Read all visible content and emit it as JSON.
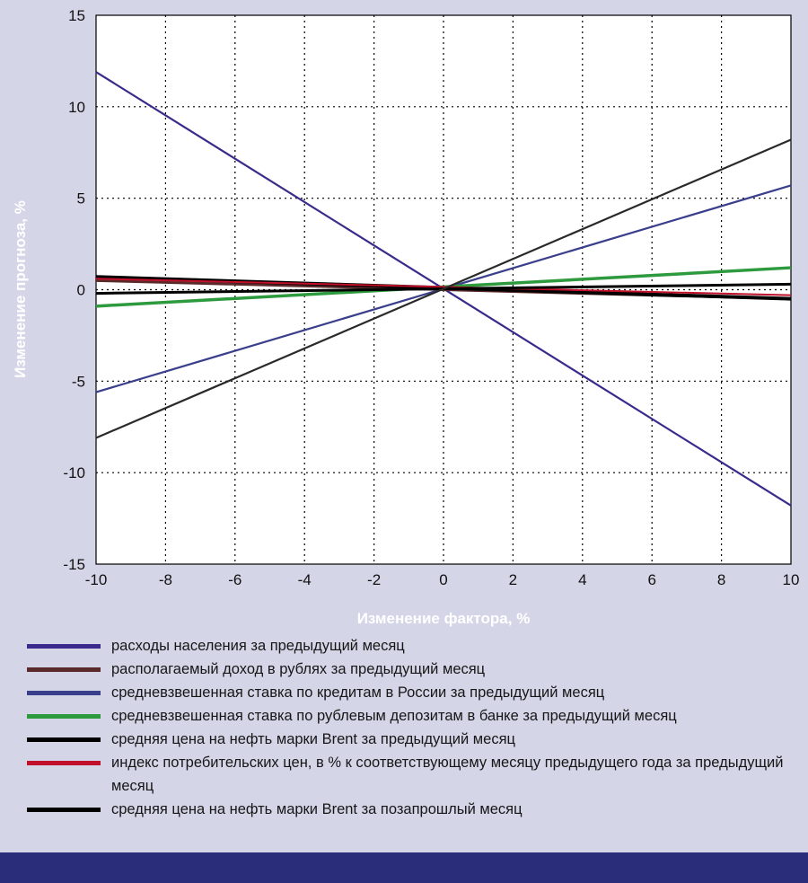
{
  "chart_data": {
    "type": "line",
    "ylabel": "Изменение прогноза, %",
    "xlabel": "Изменение фактора, %",
    "xlim": [
      -10,
      10
    ],
    "ylim": [
      -15,
      15
    ],
    "x_ticks": [
      "-10",
      "-8",
      "-6",
      "-4",
      "-2",
      "0",
      "2",
      "4",
      "6",
      "8",
      "10"
    ],
    "y_ticks": [
      "15",
      "10",
      "5",
      "0",
      "-5",
      "-10",
      "-15"
    ],
    "grid": true,
    "series": [
      {
        "name": "расходы населения за предыдущий месяц",
        "color": "#3a2a8c",
        "x": [
          -10,
          10
        ],
        "y": [
          11.9,
          -11.8
        ]
      },
      {
        "name": "располагаемый доход в рублях за предыдущий месяц",
        "color": "#5a2a2a",
        "x": [
          -10,
          10
        ],
        "y": [
          0.5,
          -0.5
        ]
      },
      {
        "name": "средневзвешенная ставка по кредитам в России за предыдущий месяц",
        "color": "#3a3f8c",
        "x": [
          -10,
          10
        ],
        "y": [
          -5.6,
          5.7
        ]
      },
      {
        "name": "средневзвешенная ставка по рублевым депозитам в банке за предыдущий месяц",
        "color": "#2e9a3e",
        "x": [
          -10,
          10
        ],
        "y": [
          -0.9,
          1.2
        ]
      },
      {
        "name": "средняя цена на нефть марки Brent за предыдущий месяц",
        "color": "#000000",
        "x": [
          -10,
          10
        ],
        "y": [
          0.7,
          -0.5
        ]
      },
      {
        "name": "индекс потребительских цен, в % к соответствующему месяцу предыдущего года за предыдущий месяц",
        "color": "#c0102a",
        "x": [
          -10,
          10
        ],
        "y": [
          0.6,
          -0.3
        ]
      },
      {
        "name": "средняя цена на нефть марки Brent за позапрошлый месяц",
        "color": "#000000",
        "x": [
          -10,
          10
        ],
        "y": [
          -0.2,
          0.3
        ]
      },
      {
        "name": "",
        "color": "#2a2a2a",
        "x": [
          -10,
          10
        ],
        "y": [
          -8.1,
          8.2
        ]
      }
    ]
  },
  "legend": [
    {
      "label": "расходы населения за предыдущий месяц",
      "color": "#3a2a8c"
    },
    {
      "label": "располагаемый доход в рублях за предыдущий месяц",
      "color": "#5a2a2a"
    },
    {
      "label": "средневзвешенная ставка по кредитам в России за предыдущий месяц",
      "color": "#3a3f8c"
    },
    {
      "label": "средневзвешенная ставка по рублевым депозитам в банке за предыдущий месяц",
      "color": "#2e9a3e"
    },
    {
      "label": "средняя цена на нефть марки Brent за предыдущий месяц",
      "color": "#000000"
    },
    {
      "label": "индекс потребительских цен, в % к соответствующему месяцу предыдущего года за предыдущий месяц",
      "color": "#c0102a"
    },
    {
      "label": "средняя цена на нефть марки Brent за позапрошлый месяц",
      "color": "#000000"
    }
  ]
}
